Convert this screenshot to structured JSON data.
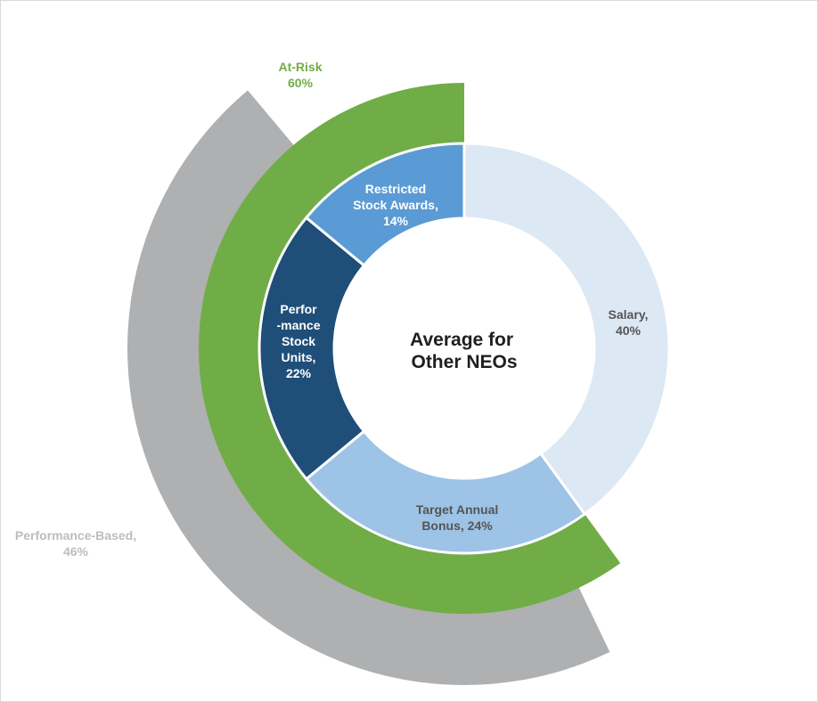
{
  "chart_data": {
    "type": "pie",
    "center_title": [
      "Average for",
      "Other NEOs"
    ],
    "inner_ring": [
      {
        "label": [
          "Salary,",
          "40%"
        ],
        "category": "Salary",
        "value": 40,
        "color": "#dde8f5",
        "label_color": "#555555"
      },
      {
        "label": [
          "Target Annual",
          "Bonus, 24%"
        ],
        "category": "Target Annual Bonus",
        "value": 24,
        "color": "#9dc3e6",
        "label_color": "#555555"
      },
      {
        "label": [
          "Perfor",
          "-mance",
          "Stock",
          "Units,",
          "22%"
        ],
        "category": "Performance Stock Units",
        "value": 22,
        "color": "#1f4e79",
        "label_color": "#ffffff"
      },
      {
        "label": [
          "Restricted",
          "Stock Awards,",
          "14%"
        ],
        "category": "Restricted Stock Awards",
        "value": 14,
        "color": "#5b9bd5",
        "label_color": "#ffffff"
      }
    ],
    "middle_ring": {
      "label": [
        "At-Risk",
        "60%"
      ],
      "category": "At-Risk",
      "value": 60,
      "color": "#70ad47",
      "label_color": "#70ad47"
    },
    "outer_ring": {
      "label": [
        "Performance-Based,",
        "46%"
      ],
      "category": "Performance-Based",
      "value": 46,
      "color": "#afb0b2",
      "label_color": "#bdbdbd"
    }
  }
}
